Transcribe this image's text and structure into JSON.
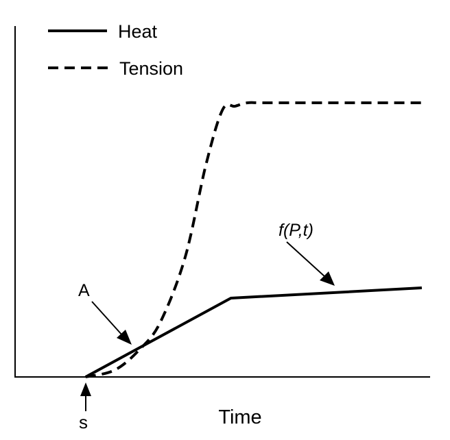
{
  "chart_data": {
    "type": "line",
    "title": "",
    "xlabel": "Time",
    "ylabel": "",
    "xlim": [
      0,
      10
    ],
    "ylim": [
      0,
      10
    ],
    "grid": false,
    "legend_position": "top-left",
    "series": [
      {
        "name": "Heat",
        "style": "solid",
        "color": "#000000",
        "x": [
          1.7,
          5.2,
          9.8
        ],
        "y": [
          0.0,
          2.3,
          2.6
        ]
      },
      {
        "name": "Tension",
        "style": "dashed",
        "color": "#000000",
        "x": [
          1.7,
          2.4,
          3.0,
          3.5,
          4.1,
          4.6,
          5.0,
          5.3,
          5.6,
          6.0,
          7.5,
          9.8
        ],
        "y": [
          0.0,
          0.2,
          0.8,
          1.6,
          3.5,
          6.2,
          7.8,
          7.9,
          8.0,
          8.0,
          8.0,
          8.0
        ]
      }
    ],
    "annotations": [
      {
        "text": "A",
        "x": 3.0,
        "y": 0.85,
        "italic": false
      },
      {
        "text": "f(P,t)",
        "x": 7.6,
        "y": 2.7,
        "italic": true
      },
      {
        "text": "s",
        "x": 1.7,
        "y": 0.0,
        "italic": false
      }
    ]
  }
}
